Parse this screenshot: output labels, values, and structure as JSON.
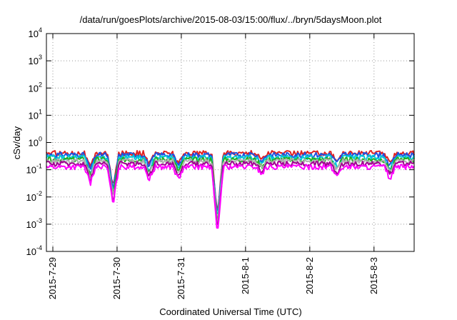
{
  "chart_data": {
    "type": "line",
    "title": "/data/run/goesPlots/archive/2015-08-03/15:00/flux/../bryn/5daysMoon.plot",
    "xlabel": "Coordinated Universal Time (UTC)",
    "ylabel": "cSv/day",
    "y_scale": "log",
    "ylim": [
      0.0001,
      10000
    ],
    "y_ticks": [
      {
        "value": 0.0001,
        "base": "10",
        "exp": "-4"
      },
      {
        "value": 0.001,
        "base": "10",
        "exp": "-3"
      },
      {
        "value": 0.01,
        "base": "10",
        "exp": "-2"
      },
      {
        "value": 0.1,
        "base": "10",
        "exp": "-1"
      },
      {
        "value": 1,
        "base": "10",
        "exp": "0"
      },
      {
        "value": 10,
        "base": "10",
        "exp": "1"
      },
      {
        "value": 100,
        "base": "10",
        "exp": "2"
      },
      {
        "value": 1000,
        "base": "10",
        "exp": "3"
      },
      {
        "value": 10000,
        "base": "10",
        "exp": "4"
      }
    ],
    "x_range": [
      "2015-07-28T21:36",
      "2015-08-03T15:00"
    ],
    "x_ticks": [
      "2015-7-29",
      "2015-7-30",
      "2015-7-31",
      "2015-8-1",
      "2015-8-2",
      "2015-8-3"
    ],
    "grid": true,
    "dips": [
      {
        "time": "2015-07-29T14:00",
        "factor": 0.25
      },
      {
        "time": "2015-07-29T22:30",
        "factor": 0.04
      },
      {
        "time": "2015-07-30T12:00",
        "factor": 0.35
      },
      {
        "time": "2015-07-30T23:00",
        "factor": 0.35
      },
      {
        "time": "2015-07-31T13:30",
        "factor": 0.003
      },
      {
        "time": "2015-08-01T06:00",
        "factor": 0.55
      },
      {
        "time": "2015-08-02T10:00",
        "factor": 0.45
      },
      {
        "time": "2015-08-03T06:00",
        "factor": 0.35
      }
    ],
    "series": [
      {
        "color": "#e02020",
        "level": 0.42
      },
      {
        "color": "#2050e0",
        "level": 0.36
      },
      {
        "color": "#00c8d8",
        "level": 0.29
      },
      {
        "color": "#20b020",
        "level": 0.24
      },
      {
        "color": "#b0b0b0",
        "level": 0.21
      },
      {
        "color": "#a00090",
        "level": 0.17
      },
      {
        "color": "#ff00ff",
        "level": 0.13
      }
    ]
  }
}
